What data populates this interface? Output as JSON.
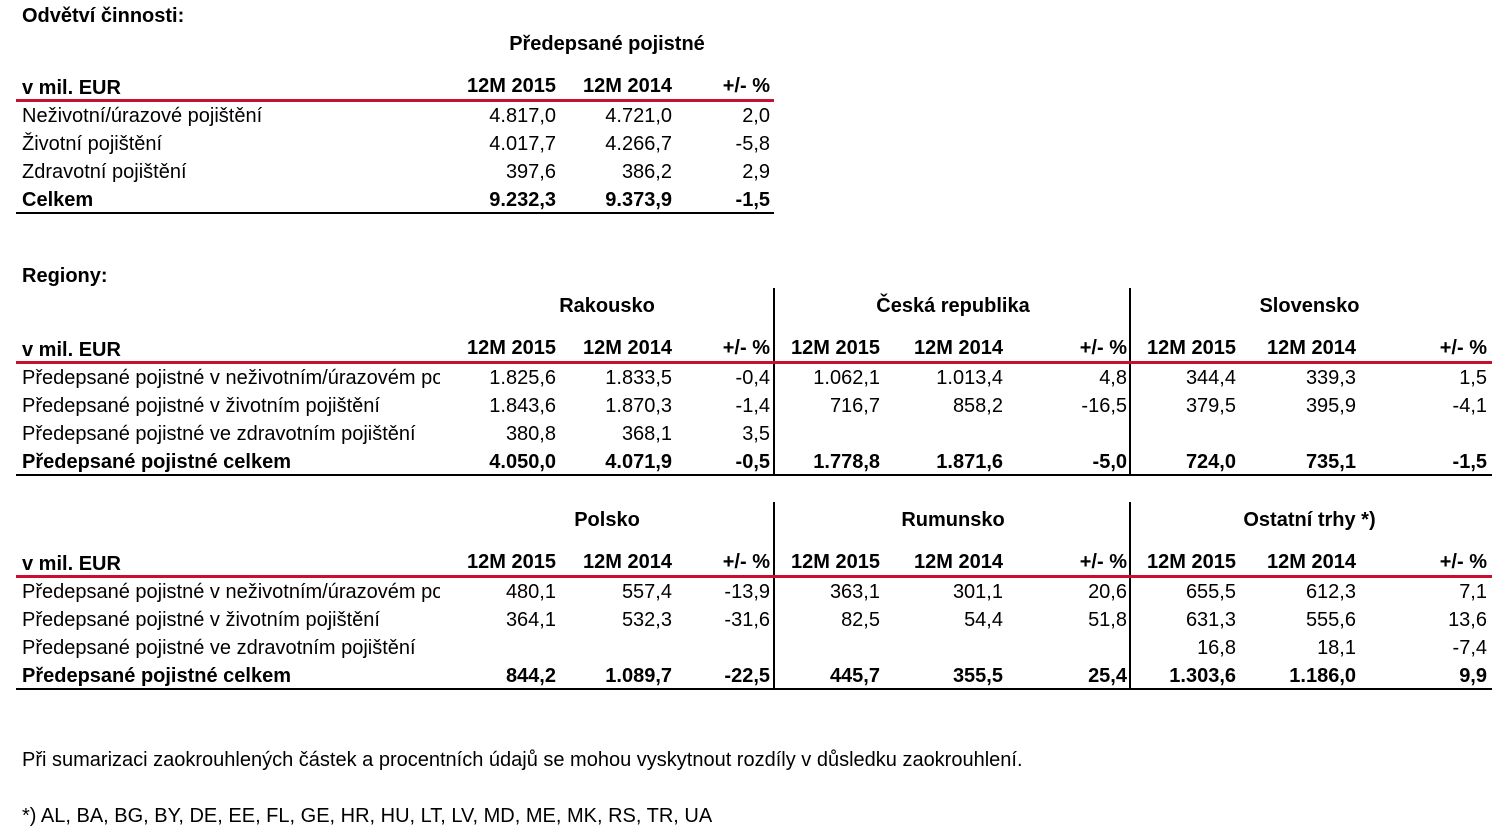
{
  "sector": {
    "title": "Odvětví činnosti:",
    "group_header": "Předepsané pojistné",
    "unit_label": "v mil. EUR",
    "columns": [
      "12M 2015",
      "12M 2014",
      "+/- %"
    ],
    "rows": [
      {
        "label": "Neživotní/úrazové pojištění",
        "values": [
          "4.817,0",
          "4.721,0",
          "2,0"
        ]
      },
      {
        "label": "Životní pojištění",
        "values": [
          "4.017,7",
          "4.266,7",
          "-5,8"
        ]
      },
      {
        "label": "Zdravotní pojištění",
        "values": [
          "397,6",
          "386,2",
          "2,9"
        ]
      }
    ],
    "total": {
      "label": "Celkem",
      "values": [
        "9.232,3",
        "9.373,9",
        "-1,5"
      ]
    }
  },
  "regions": {
    "title": "Regiony:",
    "tables": [
      {
        "unit_label": "v mil. EUR",
        "groups": [
          {
            "name": "Rakousko",
            "columns": [
              "12M 2015",
              "12M 2014",
              "+/- %"
            ]
          },
          {
            "name": "Česká republika",
            "columns": [
              "12M 2015",
              "12M 2014",
              "+/- %"
            ]
          },
          {
            "name": "Slovensko",
            "columns": [
              "12M 2015",
              "12M 2014",
              "+/- %"
            ]
          }
        ],
        "rows": [
          {
            "label": "Předepsané pojistné v neživotním/úrazovém pojištění",
            "values": [
              "1.825,6",
              "1.833,5",
              "-0,4",
              "1.062,1",
              "1.013,4",
              "4,8",
              "344,4",
              "339,3",
              "1,5"
            ]
          },
          {
            "label": "Předepsané pojistné v životním pojištění",
            "values": [
              "1.843,6",
              "1.870,3",
              "-1,4",
              "716,7",
              "858,2",
              "-16,5",
              "379,5",
              "395,9",
              "-4,1"
            ]
          },
          {
            "label": "Předepsané pojistné ve zdravotním pojištění",
            "values": [
              "380,8",
              "368,1",
              "3,5",
              "",
              "",
              "",
              "",
              "",
              ""
            ]
          }
        ],
        "total": {
          "label": "Předepsané pojistné celkem",
          "values": [
            "4.050,0",
            "4.071,9",
            "-0,5",
            "1.778,8",
            "1.871,6",
            "-5,0",
            "724,0",
            "735,1",
            "-1,5"
          ]
        }
      },
      {
        "unit_label": "v mil. EUR",
        "groups": [
          {
            "name": "Polsko",
            "columns": [
              "12M 2015",
              "12M 2014",
              "+/- %"
            ]
          },
          {
            "name": "Rumunsko",
            "columns": [
              "12M 2015",
              "12M 2014",
              "+/- %"
            ]
          },
          {
            "name": "Ostatní trhy *)",
            "columns": [
              "12M 2015",
              "12M 2014",
              "+/- %"
            ]
          }
        ],
        "rows": [
          {
            "label": "Předepsané pojistné v neživotním/úrazovém pojištění",
            "values": [
              "480,1",
              "557,4",
              "-13,9",
              "363,1",
              "301,1",
              "20,6",
              "655,5",
              "612,3",
              "7,1"
            ]
          },
          {
            "label": "Předepsané pojistné v životním pojištění",
            "values": [
              "364,1",
              "532,3",
              "-31,6",
              "82,5",
              "54,4",
              "51,8",
              "631,3",
              "555,6",
              "13,6"
            ]
          },
          {
            "label": "Předepsané pojistné ve zdravotním pojištění",
            "values": [
              "",
              "",
              "",
              "",
              "",
              "",
              "16,8",
              "18,1",
              "-7,4"
            ]
          }
        ],
        "total": {
          "label": "Předepsané pojistné celkem",
          "values": [
            "844,2",
            "1.089,7",
            "-22,5",
            "445,7",
            "355,5",
            "25,4",
            "1.303,6",
            "1.186,0",
            "9,9"
          ]
        }
      }
    ]
  },
  "notes": {
    "rounding": "Při sumarizaci zaokrouhlených částek a procentních údajů se mohou vyskytnout rozdíly v důsledku zaokrouhlení.",
    "footnote": "*) AL, BA, BG, BY, DE, EE, FL, GE, HR, HU, LT, LV, MD, ME, MK, RS, TR, UA"
  }
}
